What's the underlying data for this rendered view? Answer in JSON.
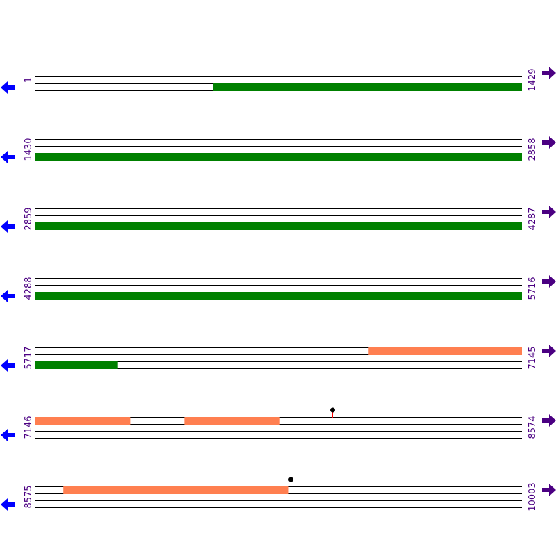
{
  "colors": {
    "background": "#ffffff",
    "track_line": "#000000",
    "orf_green": "#008000",
    "orf_salmon": "#ff7f50",
    "label_text": "#4b0082",
    "left_arrow": "#0000ff",
    "right_arrow": "#4b0082",
    "marker_head": "#000000",
    "marker_stem": "#ff0000"
  },
  "icons": {
    "left": "arrow-left-icon",
    "right": "arrow-right-icon",
    "marker": "lollipop-marker-icon"
  },
  "chart_data": {
    "type": "sequence-map",
    "sequence_length": 10003,
    "tracks_per_row": 4,
    "rows": [
      {
        "start": 1,
        "end": 1429,
        "start_label": "1",
        "end_label": "1429",
        "features": [
          {
            "track": 2,
            "from": 523,
            "to": 1429,
            "color": "orf_green"
          }
        ],
        "markers": []
      },
      {
        "start": 1430,
        "end": 2858,
        "start_label": "1430",
        "end_label": "2858",
        "features": [
          {
            "track": 2,
            "from": 1430,
            "to": 2858,
            "color": "orf_green"
          }
        ],
        "markers": []
      },
      {
        "start": 2859,
        "end": 4287,
        "start_label": "2859",
        "end_label": "4287",
        "features": [
          {
            "track": 2,
            "from": 2859,
            "to": 4287,
            "color": "orf_green"
          }
        ],
        "markers": []
      },
      {
        "start": 4288,
        "end": 5716,
        "start_label": "4288",
        "end_label": "5716",
        "features": [
          {
            "track": 2,
            "from": 4288,
            "to": 5716,
            "color": "orf_green"
          }
        ],
        "markers": []
      },
      {
        "start": 5717,
        "end": 7145,
        "start_label": "5717",
        "end_label": "7145",
        "features": [
          {
            "track": 0,
            "from": 6696,
            "to": 7145,
            "color": "orf_salmon"
          },
          {
            "track": 2,
            "from": 5717,
            "to": 5960,
            "color": "orf_green"
          }
        ],
        "markers": []
      },
      {
        "start": 7146,
        "end": 8574,
        "start_label": "7146",
        "end_label": "8574",
        "features": [
          {
            "track": 0,
            "from": 7146,
            "to": 7425,
            "color": "orf_salmon"
          },
          {
            "track": 0,
            "from": 7585,
            "to": 7864,
            "color": "orf_salmon"
          }
        ],
        "markers": [
          {
            "track": 0,
            "position": 8019
          }
        ]
      },
      {
        "start": 8575,
        "end": 10003,
        "start_label": "8575",
        "end_label": "10003",
        "features": [
          {
            "track": 0,
            "from": 8659,
            "to": 9319,
            "color": "orf_salmon"
          }
        ],
        "markers": [
          {
            "track": 0,
            "position": 9326
          }
        ]
      }
    ]
  }
}
